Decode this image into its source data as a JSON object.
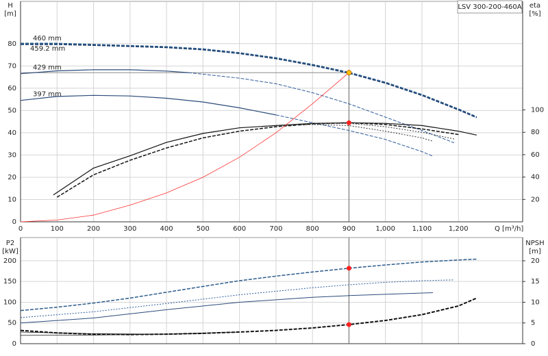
{
  "chart_data": [
    {
      "type": "line",
      "title": "LSV 300-200-460A",
      "y_label": "H",
      "y_unit": "[m]",
      "y2_label": "eta",
      "y2_unit": "[%]",
      "x_label": "Q [m³/h]",
      "xlim": [
        0,
        1376
      ],
      "ylim": [
        0,
        99
      ],
      "y2lim": [
        0,
        197
      ],
      "grid": true,
      "xticks": [
        0,
        100,
        200,
        300,
        400,
        500,
        600,
        700,
        800,
        900,
        {
          "value": 1000,
          "label": "1,000"
        },
        {
          "value": 1100,
          "label": "1,100"
        },
        {
          "value": 1200,
          "label": "1,200"
        }
      ],
      "yticks": [
        0,
        10,
        20,
        30,
        40,
        50,
        60,
        70,
        80
      ],
      "y2ticks": [
        20,
        40,
        60,
        80,
        100
      ],
      "series": [
        {
          "name": "460 mm",
          "color": "#2a5a8a",
          "style": "dashed",
          "width": 2.5,
          "x": [
            0,
            100,
            200,
            300,
            400,
            500,
            600,
            700,
            800,
            900,
            1000,
            1100,
            1200,
            1250
          ],
          "values": [
            80,
            80,
            79.5,
            79,
            78.5,
            77.5,
            75.8,
            73.5,
            70.5,
            67,
            62.5,
            57,
            50.5,
            47
          ]
        },
        {
          "name": "459.2 mm",
          "color": "#1a3a6a",
          "style": "dashed",
          "width": 1.2,
          "x": [
            0,
            100,
            200,
            300,
            400,
            500,
            600,
            700,
            800,
            900,
            1000,
            1100,
            1200,
            1250
          ],
          "values": [
            79.6,
            79.6,
            79.2,
            78.7,
            78.2,
            77.2,
            75.5,
            73.2,
            70.2,
            66.7,
            62.2,
            56.7,
            50.2,
            46.7
          ]
        },
        {
          "name": "429 mm",
          "color": "#2a4a7a",
          "style": "solid",
          "width": 1.2,
          "x": [
            0,
            100,
            200,
            300,
            400,
            460
          ],
          "values": [
            66.5,
            67.8,
            68.3,
            68.3,
            67.7,
            67
          ]
        },
        {
          "color": "#2a5a9a",
          "style": "dashed",
          "width": 1,
          "x": [
            460,
            600,
            700,
            800,
            900,
            1000,
            1100,
            1188
          ],
          "values": [
            67,
            64.5,
            62,
            58,
            53,
            47,
            41,
            35.5
          ]
        },
        {
          "name": "397 mm",
          "color": "#2a4a7a",
          "style": "solid",
          "width": 1.2,
          "x": [
            0,
            100,
            200,
            300,
            400,
            500,
            600,
            700
          ],
          "values": [
            54.5,
            56.3,
            56.8,
            56.5,
            55.5,
            53.8,
            51.2,
            48
          ]
        },
        {
          "color": "#2a5a9a",
          "style": "dashed",
          "width": 1,
          "x": [
            700,
            800,
            900,
            1000,
            1100,
            1130
          ],
          "values": [
            48,
            44.5,
            41,
            37,
            31.5,
            29.5
          ]
        },
        {
          "color": "#111111",
          "style": "solid",
          "width": 1.2,
          "axis": "y2",
          "x": [
            90,
            200,
            300,
            400,
            500,
            600,
            700,
            800,
            900,
            1000,
            1100,
            1200,
            1250
          ],
          "values": [
            24,
            48,
            59,
            71,
            79,
            84,
            86,
            88,
            88.5,
            88,
            86,
            81,
            77.5
          ]
        },
        {
          "color": "#111111",
          "style": "dashed",
          "width": 1.5,
          "axis": "y2",
          "x": [
            100,
            200,
            300,
            400,
            500,
            600,
            700,
            800,
            900,
            1000,
            1100,
            1200
          ],
          "values": [
            22,
            42,
            55,
            66,
            75,
            81,
            85,
            87.5,
            88.5,
            87,
            83,
            78
          ]
        },
        {
          "color": "#333333",
          "style": "dotted",
          "width": 1,
          "axis": "y2",
          "x": [
            700,
            800,
            900,
            1000,
            1100,
            1188
          ],
          "values": [
            86,
            88,
            88,
            85,
            80,
            74
          ]
        },
        {
          "color": "#333333",
          "style": "dotted",
          "width": 1,
          "axis": "y2",
          "x": [
            700,
            800,
            900,
            1000,
            1100,
            1130
          ],
          "values": [
            86,
            87,
            86,
            81,
            75,
            72
          ]
        },
        {
          "color": "#ff3030",
          "style": "solid",
          "width": 0.8,
          "x": [
            0,
            100,
            200,
            300,
            400,
            500,
            600,
            700,
            800,
            900
          ],
          "values": [
            0,
            0.8,
            3,
            7.5,
            13,
            20,
            29,
            40,
            53,
            67
          ]
        }
      ],
      "points": [
        {
          "x": 900,
          "y": 67,
          "color": "#ffc000"
        },
        {
          "x": 900,
          "y": 88.5,
          "axis": "y2",
          "color": "#ff2020"
        }
      ]
    },
    {
      "type": "line",
      "y_label": "P2",
      "y_unit": "[kW]",
      "y2_label": "NPSH",
      "y2_unit": "[m]",
      "xlim": [
        0,
        1376
      ],
      "ylim": [
        0,
        256
      ],
      "y2lim": [
        0,
        25.6
      ],
      "grid": true,
      "xticks": [
        0,
        100,
        200,
        300,
        400,
        500,
        600,
        700,
        800,
        900,
        1000,
        1100,
        1200
      ],
      "yticks": [
        0,
        50,
        100,
        150,
        200
      ],
      "y2ticks": [
        0,
        5,
        10,
        15,
        20
      ],
      "series": [
        {
          "color": "#2a5a8a",
          "style": "dashed",
          "width": 1.5,
          "x": [
            0,
            100,
            200,
            300,
            400,
            500,
            600,
            700,
            800,
            900,
            1000,
            1100,
            1200,
            1250
          ],
          "values": [
            80,
            88,
            98,
            110,
            124,
            138,
            152,
            163,
            173,
            182,
            190,
            197,
            202,
            204
          ]
        },
        {
          "color": "#2a5a9a",
          "style": "dotted",
          "width": 1,
          "x": [
            0,
            200,
            400,
            600,
            800,
            900,
            1000,
            1100,
            1188
          ],
          "values": [
            63,
            77,
            97,
            118,
            135,
            142,
            148,
            152,
            154
          ]
        },
        {
          "color": "#2a4a7a",
          "style": "solid",
          "width": 1,
          "x": [
            0,
            200,
            400,
            600,
            800,
            900,
            1000,
            1130
          ],
          "values": [
            50,
            62,
            82,
            100,
            112,
            116,
            119,
            123
          ]
        },
        {
          "color": "#111111",
          "style": "dashed",
          "width": 2,
          "axis": "y2",
          "x": [
            0,
            100,
            200,
            300,
            400,
            500,
            600,
            700,
            800,
            900,
            1000,
            1100,
            1200,
            1250
          ],
          "values": [
            3.2,
            2.6,
            2.3,
            2.2,
            2.3,
            2.5,
            2.8,
            3.2,
            3.8,
            4.6,
            5.6,
            7,
            9.1,
            11
          ]
        },
        {
          "color": "#111111",
          "style": "solid",
          "width": 0.8,
          "axis": "y2",
          "x": [
            0,
            200,
            400,
            600
          ],
          "values": [
            2.8,
            2.4,
            2.3,
            2.8
          ]
        },
        {
          "color": "#111111",
          "style": "solid",
          "width": 0.8,
          "axis": "y2",
          "x": [
            0,
            200,
            400,
            500
          ],
          "values": [
            2,
            2.1,
            2.3,
            2.5
          ]
        }
      ],
      "points": [
        {
          "x": 900,
          "y": 182,
          "color": "#ff2020"
        },
        {
          "x": 900,
          "y": 4.6,
          "axis": "y2",
          "color": "#ff2020"
        }
      ]
    }
  ]
}
